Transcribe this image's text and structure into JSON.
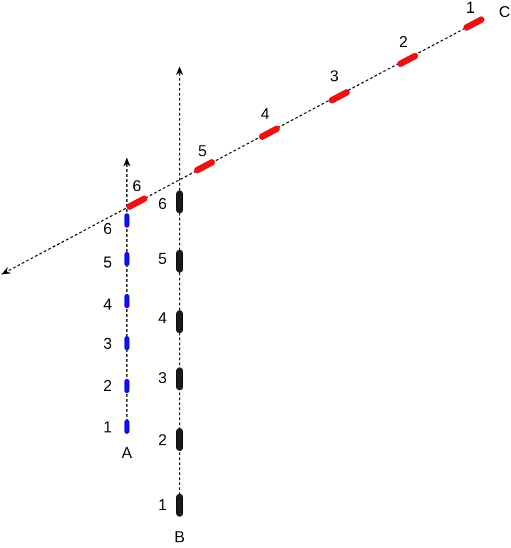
{
  "tracks": [
    {
      "label": "A",
      "positions": [
        "1",
        "2",
        "3",
        "4",
        "5",
        "6"
      ]
    },
    {
      "label": "B",
      "positions": [
        "1",
        "2",
        "3",
        "4",
        "5",
        "6"
      ]
    },
    {
      "label": "C",
      "positions": [
        "1",
        "2",
        "3",
        "4",
        "5",
        "6"
      ]
    }
  ]
}
